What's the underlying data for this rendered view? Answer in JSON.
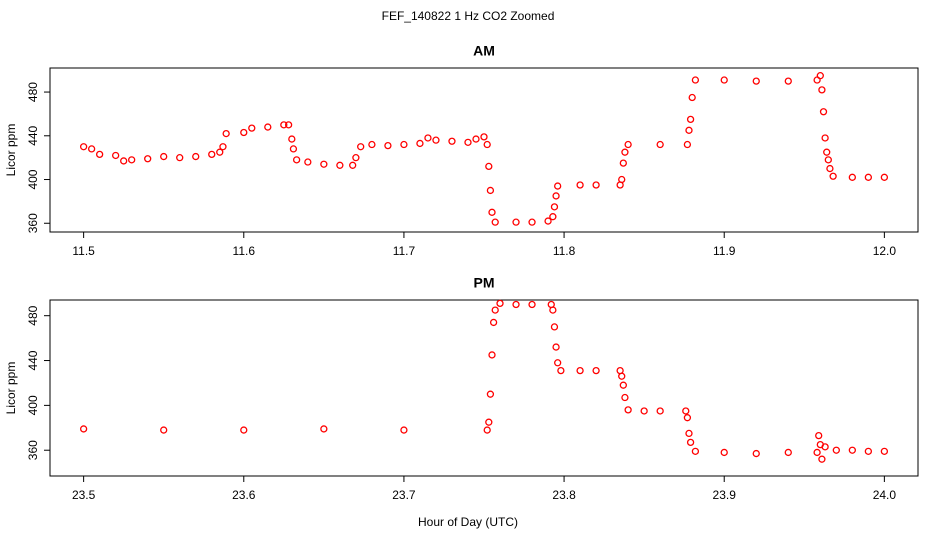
{
  "figure": {
    "title": "FEF_140822  1 Hz CO2 Zoomed",
    "xlabel": "Hour of Day (UTC)"
  },
  "chart_data": [
    {
      "type": "scatter",
      "title": "AM",
      "ylabel": "Licor ppm",
      "color": "#ff0000",
      "xlim": [
        11.479,
        12.021
      ],
      "ylim": [
        352,
        502
      ],
      "xticks": [
        11.5,
        11.6,
        11.7,
        11.8,
        11.9,
        {
          "value": 12,
          "label": "12.0"
        }
      ],
      "yticks": [
        360,
        400,
        440,
        480
      ],
      "x": [
        11.5,
        11.505,
        11.51,
        11.52,
        11.525,
        11.53,
        11.54,
        11.55,
        11.56,
        11.57,
        11.58,
        11.585,
        11.587,
        11.589,
        11.6,
        11.605,
        11.615,
        11.625,
        11.628,
        11.63,
        11.631,
        11.633,
        11.64,
        11.65,
        11.66,
        11.668,
        11.67,
        11.673,
        11.68,
        11.69,
        11.7,
        11.71,
        11.715,
        11.72,
        11.73,
        11.74,
        11.745,
        11.75,
        11.752,
        11.753,
        11.754,
        11.755,
        11.757,
        11.77,
        11.78,
        11.79,
        11.793,
        11.794,
        11.795,
        11.796,
        11.81,
        11.82,
        11.835,
        11.836,
        11.837,
        11.838,
        11.84,
        11.86,
        11.877,
        11.878,
        11.879,
        11.88,
        11.882,
        11.9,
        11.92,
        11.94,
        11.958,
        11.96,
        11.961,
        11.962,
        11.963,
        11.964,
        11.965,
        11.966,
        11.968,
        11.98,
        11.99,
        12.0
      ],
      "y": [
        430,
        428,
        423,
        422,
        417,
        418,
        419,
        421,
        420,
        421,
        423,
        425,
        430,
        442,
        443,
        447,
        448,
        450,
        450,
        437,
        428,
        418,
        416,
        414,
        413,
        413,
        420,
        430,
        432,
        431,
        432,
        433,
        438,
        436,
        435,
        434,
        437,
        439,
        432,
        412,
        390,
        370,
        361,
        361,
        361,
        362,
        366,
        375,
        385,
        394,
        395,
        395,
        395,
        400,
        415,
        425,
        432,
        432,
        432,
        445,
        455,
        475,
        491,
        491,
        490,
        490,
        491,
        495,
        482,
        462,
        438,
        425,
        418,
        410,
        403,
        402,
        402,
        402
      ]
    },
    {
      "type": "scatter",
      "title": "PM",
      "ylabel": "Licor ppm",
      "color": "#ff0000",
      "xlim": [
        23.479,
        24.021
      ],
      "ylim": [
        337,
        494
      ],
      "xticks": [
        23.5,
        23.6,
        23.7,
        23.8,
        23.9,
        {
          "value": 24,
          "label": "24.0"
        }
      ],
      "yticks": [
        360,
        400,
        440,
        480
      ],
      "x": [
        23.5,
        23.55,
        23.6,
        23.65,
        23.7,
        23.752,
        23.753,
        23.754,
        23.755,
        23.756,
        23.757,
        23.76,
        23.77,
        23.78,
        23.792,
        23.793,
        23.794,
        23.795,
        23.796,
        23.798,
        23.81,
        23.82,
        23.835,
        23.836,
        23.837,
        23.838,
        23.84,
        23.85,
        23.86,
        23.876,
        23.877,
        23.878,
        23.879,
        23.882,
        23.9,
        23.92,
        23.94,
        23.958,
        23.959,
        23.96,
        23.961,
        23.963,
        23.97,
        23.98,
        23.99,
        24.0
      ],
      "y": [
        379,
        378,
        378,
        379,
        378,
        378,
        385,
        410,
        445,
        474,
        485,
        491,
        490,
        490,
        490,
        485,
        470,
        452,
        438,
        431,
        431,
        431,
        431,
        426,
        418,
        407,
        396,
        395,
        395,
        395,
        389,
        375,
        367,
        359,
        358,
        357,
        358,
        358,
        373,
        365,
        352,
        363,
        360,
        360,
        359,
        359
      ]
    }
  ]
}
